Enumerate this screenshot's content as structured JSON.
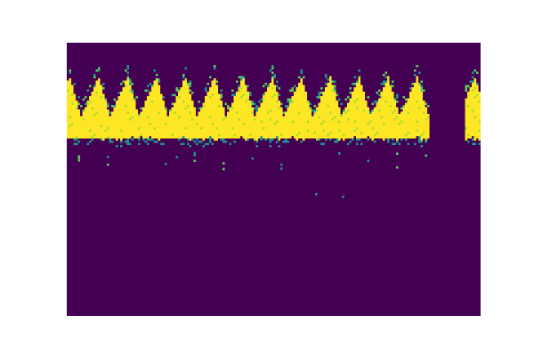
{
  "chart_data": {
    "type": "heatmap",
    "colormap": "viridis",
    "colors": {
      "low": "#440154",
      "mid": "#21918c",
      "high": "#fde725"
    },
    "grid": false,
    "axes_visible": false,
    "x": {
      "range": [
        0,
        100
      ],
      "gaps": [
        [
          87.5,
          96.0
        ]
      ]
    },
    "y": {
      "range": [
        0,
        100
      ],
      "inverted": true
    },
    "pattern": {
      "description_free_params": true,
      "period": 7.0,
      "phase": 0.5,
      "band_bottom": 35.0,
      "band_top_at_peak": 12.5,
      "band_top_at_trough": 27.0,
      "stray_pixel_rows": [
        40.0,
        46.0
      ],
      "isolated_pixels": [
        {
          "x": 60.0,
          "y": 55.0
        },
        {
          "x": 66.5,
          "y": 56.0
        }
      ],
      "right_fragment": {
        "x_start": 96.0,
        "x_end": 100.0
      }
    }
  }
}
